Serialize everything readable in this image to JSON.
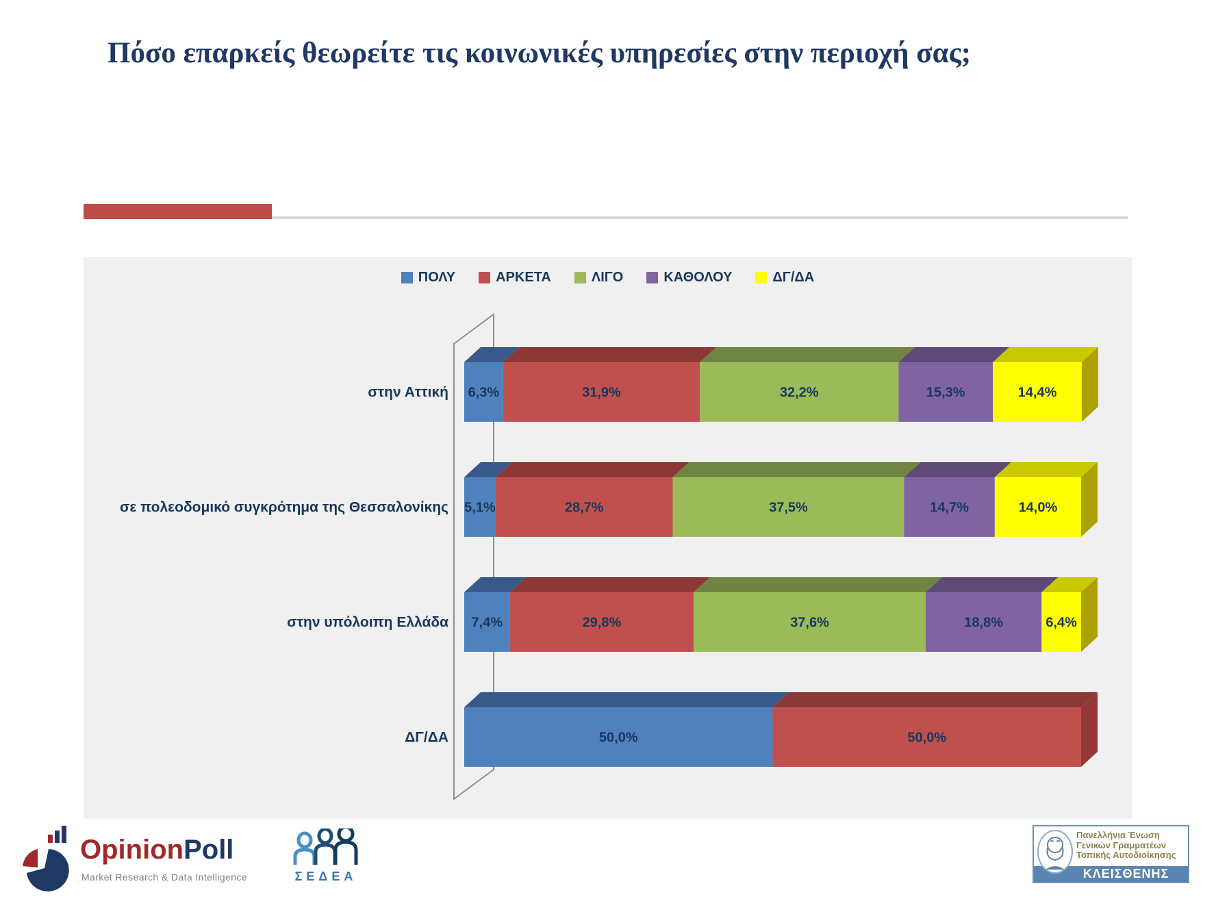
{
  "slide": {
    "title": "Πόσο επαρκείς θεωρείτε τις κοινωνικές υπηρεσίες στην περιοχή σας;"
  },
  "chart_data": {
    "type": "bar",
    "stacked": true,
    "orientation": "horizontal",
    "style": "3d",
    "unit": "percent",
    "xlim": [
      0,
      100
    ],
    "legend_position": "top",
    "background_color": "#F0F0F0",
    "value_text_color": "#17375E",
    "categories": [
      "στην Αττική",
      "σε πολεοδομικό συγκρότημα της Θεσσαλονίκης",
      "στην υπόλοιπη Ελλάδα",
      "ΔΓ/ΔΑ"
    ],
    "series": [
      {
        "name": "ΠΟΛΥ",
        "color": "#4F81BD",
        "top_color": "#38598A",
        "side_color": "#3A5F8C",
        "values": [
          6.3,
          5.1,
          7.4,
          50.0
        ],
        "labels": [
          "6,3%",
          "5,1%",
          "7,4%",
          "50,0%"
        ]
      },
      {
        "name": "ΑΡΚΕΤΑ",
        "color": "#C0504D",
        "top_color": "#8C3836",
        "side_color": "#953735",
        "values": [
          31.9,
          28.7,
          29.8,
          50.0
        ],
        "labels": [
          "31,9%",
          "28,7%",
          "29,8%",
          "50,0%"
        ]
      },
      {
        "name": "ΛΙΓΟ",
        "color": "#9BBB59",
        "top_color": "#6F8440",
        "side_color": "#77933C",
        "values": [
          32.2,
          37.5,
          37.6,
          0
        ],
        "labels": [
          "32,2%",
          "37,5%",
          "37,6%",
          ""
        ]
      },
      {
        "name": "ΚΑΘΟΛΟΥ",
        "color": "#8064A2",
        "top_color": "#5D4A76",
        "side_color": "#604A7B",
        "values": [
          15.3,
          14.7,
          18.8,
          0
        ],
        "labels": [
          "15,3%",
          "14,7%",
          "18,8%",
          ""
        ]
      },
      {
        "name": "ΔΓ/ΔΑ",
        "color": "#FFFF00",
        "top_color": "#C9C900",
        "side_color": "#ABA200",
        "values": [
          14.4,
          14.0,
          6.4,
          0
        ],
        "labels": [
          "14,4%",
          "14,0%",
          "6,4%",
          ""
        ]
      }
    ]
  },
  "footer": {
    "opinionpoll": {
      "name_primary": "Opinion",
      "name_secondary": "Poll",
      "tagline": "Market Research & Data Intelligence"
    },
    "sedea": {
      "label": "ΣΕΔΕΑ"
    },
    "kleisthenis": {
      "line1": "Πανελλήνια Ένωση",
      "line2": "Γενικών Γραμματέων",
      "line3": "Τοπικής Αυτοδιοίκησης",
      "name": "ΚΛΕΙΣΘΕΝΗΣ"
    }
  }
}
